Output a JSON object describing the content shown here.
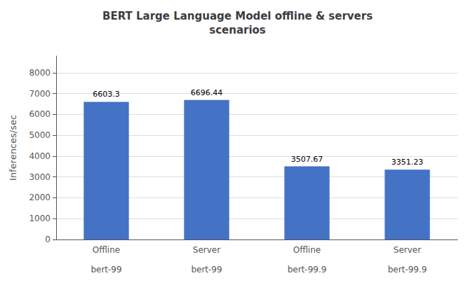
{
  "chart_data": {
    "type": "bar",
    "title": "BERT Large Language Model offline & servers\nscenarios",
    "ylabel": "Inferences/sec",
    "categories": [
      "Offline\n\nbert-99",
      "Server\n\nbert-99",
      "Offline\n\nbert-99.9",
      "Server\n\nbert-99.9"
    ],
    "values": [
      6603.3,
      6696.44,
      3507.67,
      3351.23
    ],
    "color": "#4472C4",
    "ylim": [
      0,
      8800
    ],
    "yticks": [
      0,
      1000,
      2000,
      3000,
      4000,
      5000,
      6000,
      7000,
      8000
    ],
    "grid": true,
    "data_labels": true
  }
}
